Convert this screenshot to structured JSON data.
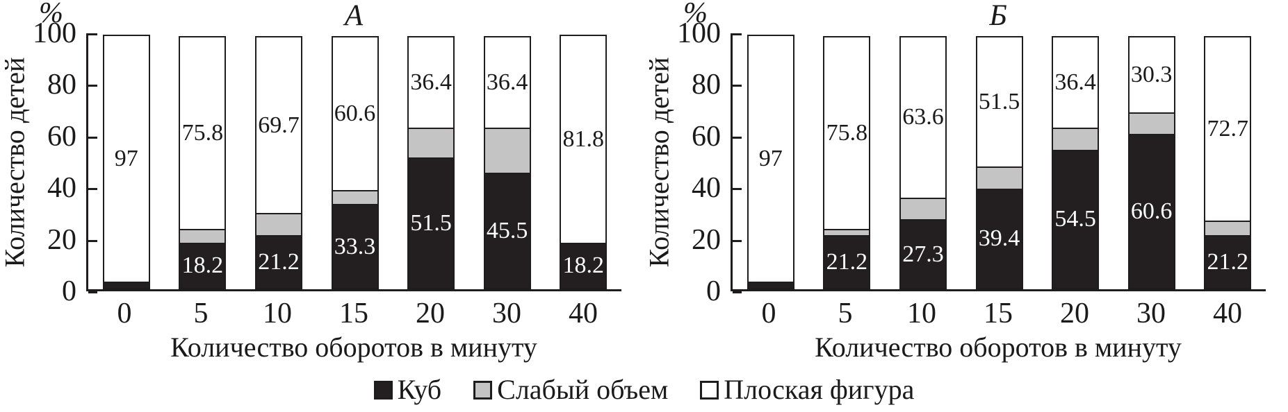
{
  "chart_data": [
    {
      "type": "bar",
      "stacked": true,
      "title": "А",
      "xlabel": "Количество оборотов в минуту",
      "ylabel": "Количество детей",
      "y_unit": "%",
      "ylim": [
        0,
        100
      ],
      "y_ticks": [
        0,
        20,
        40,
        60,
        80,
        100
      ],
      "grid": false,
      "categories": [
        "0",
        "5",
        "10",
        "15",
        "20",
        "30",
        "40"
      ],
      "series": [
        {
          "key": "cube",
          "name": "Куб",
          "color": "#231f20",
          "label_color": "#ffffff",
          "values": [
            3,
            18.2,
            21.2,
            33.3,
            51.5,
            45.5,
            18.2
          ],
          "labels": [
            null,
            "18.2",
            "21.2",
            "33.3",
            "51.5",
            "45.5",
            "18.2"
          ]
        },
        {
          "key": "weak",
          "name": "Слабый объем",
          "color": "#c4c4c4",
          "label_color": "#1a1a1a",
          "values": [
            0,
            6.0,
            9.1,
            6.1,
            12.1,
            18.1,
            0
          ],
          "labels": [
            null,
            null,
            null,
            null,
            null,
            null,
            null
          ]
        },
        {
          "key": "flat",
          "name": "Плоская фигура",
          "color": "#ffffff",
          "label_color": "#1a1a1a",
          "values": [
            97,
            75.8,
            69.7,
            60.6,
            36.4,
            36.4,
            81.8
          ],
          "labels": [
            "97",
            "75.8",
            "69.7",
            "60.6",
            "36.4",
            "36.4",
            "81.8"
          ]
        }
      ]
    },
    {
      "type": "bar",
      "stacked": true,
      "title": "Б",
      "xlabel": "Количество оборотов в минуту",
      "ylabel": "Количество детей",
      "y_unit": "%",
      "ylim": [
        0,
        100
      ],
      "y_ticks": [
        0,
        20,
        40,
        60,
        80,
        100
      ],
      "grid": false,
      "categories": [
        "0",
        "5",
        "10",
        "15",
        "20",
        "30",
        "40"
      ],
      "series": [
        {
          "key": "cube",
          "name": "Куб",
          "color": "#231f20",
          "label_color": "#ffffff",
          "values": [
            3,
            21.2,
            27.3,
            39.4,
            54.5,
            60.6,
            21.2
          ],
          "labels": [
            null,
            "21.2",
            "27.3",
            "39.4",
            "54.5",
            "60.6",
            "21.2"
          ]
        },
        {
          "key": "weak",
          "name": "Слабый объем",
          "color": "#c4c4c4",
          "label_color": "#1a1a1a",
          "values": [
            0,
            3.0,
            9.1,
            9.1,
            9.1,
            9.1,
            6.1
          ],
          "labels": [
            null,
            null,
            null,
            null,
            null,
            null,
            null
          ]
        },
        {
          "key": "flat",
          "name": "Плоская фигура",
          "color": "#ffffff",
          "label_color": "#1a1a1a",
          "values": [
            97,
            75.8,
            63.6,
            51.5,
            36.4,
            30.3,
            72.7
          ],
          "labels": [
            "97",
            "75.8",
            "63.6",
            "51.5",
            "36.4",
            "30.3",
            "72.7"
          ]
        }
      ]
    }
  ],
  "legend": {
    "items": [
      {
        "label": "Куб",
        "color": "#231f20"
      },
      {
        "label": "Слабый объем",
        "color": "#c4c4c4"
      },
      {
        "label": "Плоская фигура",
        "color": "#ffffff"
      }
    ]
  },
  "colors": {
    "axis": "#1e1c1d",
    "text": "#1a1a1a",
    "background": "#ffffff"
  }
}
